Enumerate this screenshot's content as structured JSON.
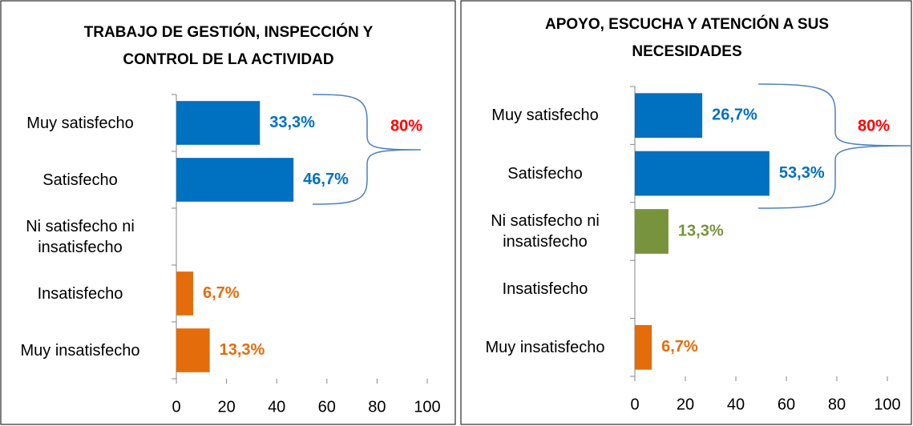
{
  "chart_data": [
    {
      "type": "bar",
      "orientation": "horizontal",
      "title": [
        "TRABAJO DE GESTIÓN, INSPECCIÓN Y",
        "CONTROL DE LA ACTIVIDAD"
      ],
      "categories": [
        "Muy satisfecho",
        "Satisfecho",
        "Ni satisfecho ni insatisfecho",
        "Insatisfecho",
        "Muy insatisfecho"
      ],
      "values": [
        33.3,
        46.7,
        null,
        6.7,
        13.3
      ],
      "value_labels": [
        "33,3%",
        "46,7%",
        null,
        "6,7%",
        "13,3%"
      ],
      "colors": [
        "#0070c0",
        "#0070c0",
        "#77933c",
        "#e46c0a",
        "#e46c0a"
      ],
      "annotation": "80%",
      "xlim": [
        0,
        100
      ],
      "xticks": [
        0,
        20,
        40,
        60,
        80,
        100
      ],
      "grid": false
    },
    {
      "type": "bar",
      "orientation": "horizontal",
      "title": [
        "APOYO, ESCUCHA Y ATENCIÓN A SUS",
        "NECESIDADES"
      ],
      "categories": [
        "Muy satisfecho",
        "Satisfecho",
        "Ni satisfecho ni insatisfecho",
        "Insatisfecho",
        "Muy insatisfecho"
      ],
      "values": [
        26.7,
        53.3,
        13.3,
        null,
        6.7
      ],
      "value_labels": [
        "26,7%",
        "53,3%",
        "13,3%",
        null,
        "6,7%"
      ],
      "colors": [
        "#0070c0",
        "#0070c0",
        "#77933c",
        "#e46c0a",
        "#e46c0a"
      ],
      "annotation": "80%",
      "xlim": [
        0,
        100
      ],
      "xticks": [
        0,
        20,
        40,
        60,
        80,
        100
      ],
      "grid": false
    }
  ]
}
